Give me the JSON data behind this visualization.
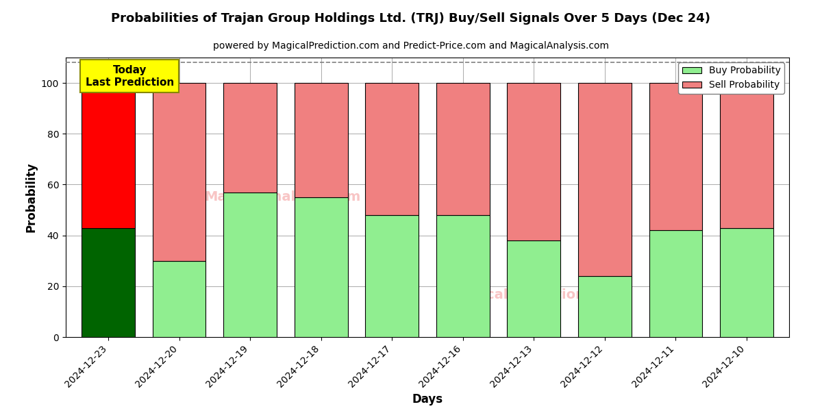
{
  "title": "Probabilities of Trajan Group Holdings Ltd. (TRJ) Buy/Sell Signals Over 5 Days (Dec 24)",
  "subtitle": "powered by MagicalPrediction.com and Predict-Price.com and MagicalAnalysis.com",
  "xlabel": "Days",
  "ylabel": "Probability",
  "days": [
    "2024-12-23",
    "2024-12-20",
    "2024-12-19",
    "2024-12-18",
    "2024-12-17",
    "2024-12-16",
    "2024-12-13",
    "2024-12-12",
    "2024-12-11",
    "2024-12-10"
  ],
  "buy_values": [
    43,
    30,
    57,
    55,
    48,
    48,
    38,
    24,
    42,
    43
  ],
  "sell_values": [
    57,
    70,
    43,
    45,
    52,
    52,
    62,
    76,
    58,
    57
  ],
  "today_buy_color": "#006400",
  "today_sell_color": "#ff0000",
  "other_buy_color": "#90EE90",
  "other_sell_color": "#F08080",
  "today_label_bg": "#ffff00",
  "today_label_text": "Today\nLast Prediction",
  "ylim": [
    0,
    110
  ],
  "yticks": [
    0,
    20,
    40,
    60,
    80,
    100
  ],
  "dashed_line_y": 108,
  "legend_buy_label": "Buy Probability",
  "legend_sell_label": "Sell Probability",
  "bar_width": 0.75,
  "edgecolor": "#000000",
  "background_color": "#ffffff",
  "grid_color": "#aaaaaa",
  "title_fontsize": 13,
  "subtitle_fontsize": 10,
  "axis_label_fontsize": 12,
  "tick_fontsize": 10
}
